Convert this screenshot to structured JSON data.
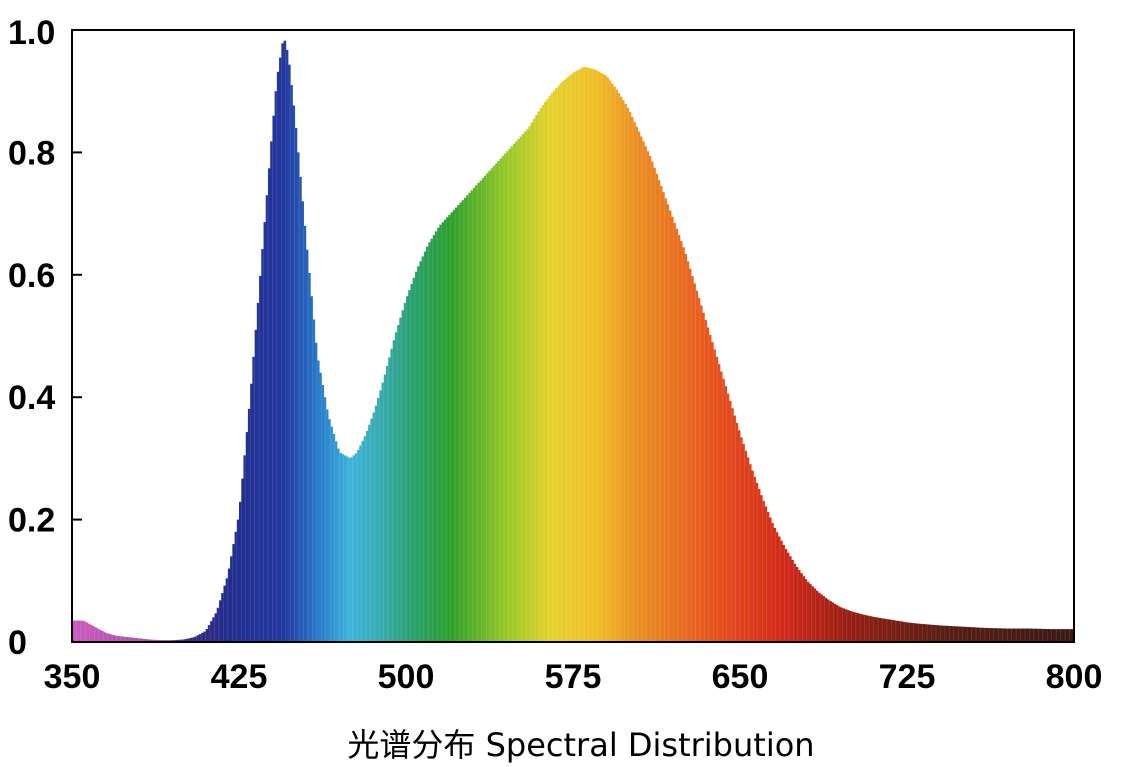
{
  "chart_data": {
    "type": "area",
    "title": "",
    "xlabel": "光谱分布 Spectral Distribution",
    "ylabel": "",
    "xlim": [
      350,
      800
    ],
    "ylim": [
      0,
      1.0
    ],
    "x_ticks": [
      "350",
      "425",
      "500",
      "575",
      "650",
      "725",
      "800"
    ],
    "y_ticks": [
      "0",
      "0.2",
      "0.4",
      "0.6",
      "0.8",
      "1.0"
    ],
    "grid": false,
    "fill": "wavelength-colored spectrum (violet to dark red)",
    "x": [
      350,
      355,
      360,
      365,
      370,
      375,
      380,
      385,
      390,
      395,
      400,
      405,
      410,
      415,
      420,
      425,
      430,
      435,
      440,
      442,
      445,
      447,
      450,
      455,
      460,
      465,
      470,
      475,
      478,
      482,
      486,
      490,
      495,
      500,
      505,
      510,
      515,
      520,
      525,
      530,
      535,
      540,
      545,
      550,
      555,
      560,
      565,
      570,
      575,
      580,
      585,
      590,
      595,
      600,
      605,
      610,
      615,
      620,
      625,
      630,
      635,
      640,
      645,
      650,
      655,
      660,
      665,
      670,
      675,
      680,
      685,
      690,
      695,
      700,
      705,
      710,
      715,
      720,
      725,
      730,
      740,
      750,
      760,
      770,
      780,
      790,
      800
    ],
    "values": [
      0.035,
      0.035,
      0.025,
      0.015,
      0.01,
      0.008,
      0.006,
      0.004,
      0.003,
      0.003,
      0.004,
      0.008,
      0.018,
      0.05,
      0.11,
      0.21,
      0.4,
      0.62,
      0.84,
      0.92,
      0.99,
      0.96,
      0.86,
      0.66,
      0.47,
      0.37,
      0.31,
      0.3,
      0.31,
      0.34,
      0.38,
      0.43,
      0.5,
      0.56,
      0.61,
      0.65,
      0.68,
      0.7,
      0.72,
      0.74,
      0.76,
      0.78,
      0.8,
      0.82,
      0.84,
      0.87,
      0.895,
      0.915,
      0.93,
      0.94,
      0.935,
      0.925,
      0.9,
      0.87,
      0.83,
      0.79,
      0.74,
      0.69,
      0.64,
      0.58,
      0.52,
      0.46,
      0.4,
      0.34,
      0.285,
      0.235,
      0.19,
      0.155,
      0.125,
      0.1,
      0.082,
      0.068,
      0.057,
      0.05,
      0.045,
      0.041,
      0.038,
      0.035,
      0.032,
      0.03,
      0.027,
      0.025,
      0.023,
      0.022,
      0.022,
      0.021,
      0.021
    ]
  }
}
